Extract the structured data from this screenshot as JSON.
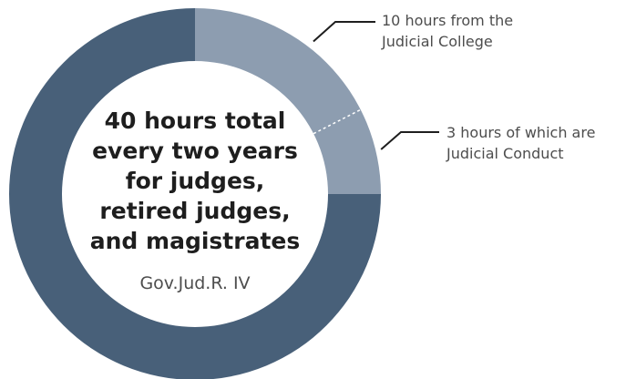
{
  "chart_data": {
    "type": "pie",
    "variant": "donut",
    "total_hours": 40,
    "slices": [
      {
        "label": "10 hours from the Judicial College",
        "value": 10,
        "color": "#8d9db0"
      },
      {
        "label": "3 hours of which are Judicial Conduct",
        "value": 3,
        "color": "#8d9db0",
        "note": "sub-portion of the 10 hours"
      },
      {
        "label": "",
        "value": 30,
        "color": "#486079"
      }
    ],
    "center_text": {
      "title_lines": [
        "40 hours total",
        "every two years",
        "for judges,",
        "retired judges,",
        "and magistrates"
      ],
      "subtitle": "Gov.Jud.R. IV"
    },
    "callouts": [
      {
        "lines": [
          "10 hours from the",
          "Judicial College"
        ]
      },
      {
        "lines": [
          "3 hours of which are",
          "Judicial Conduct"
        ]
      }
    ]
  }
}
